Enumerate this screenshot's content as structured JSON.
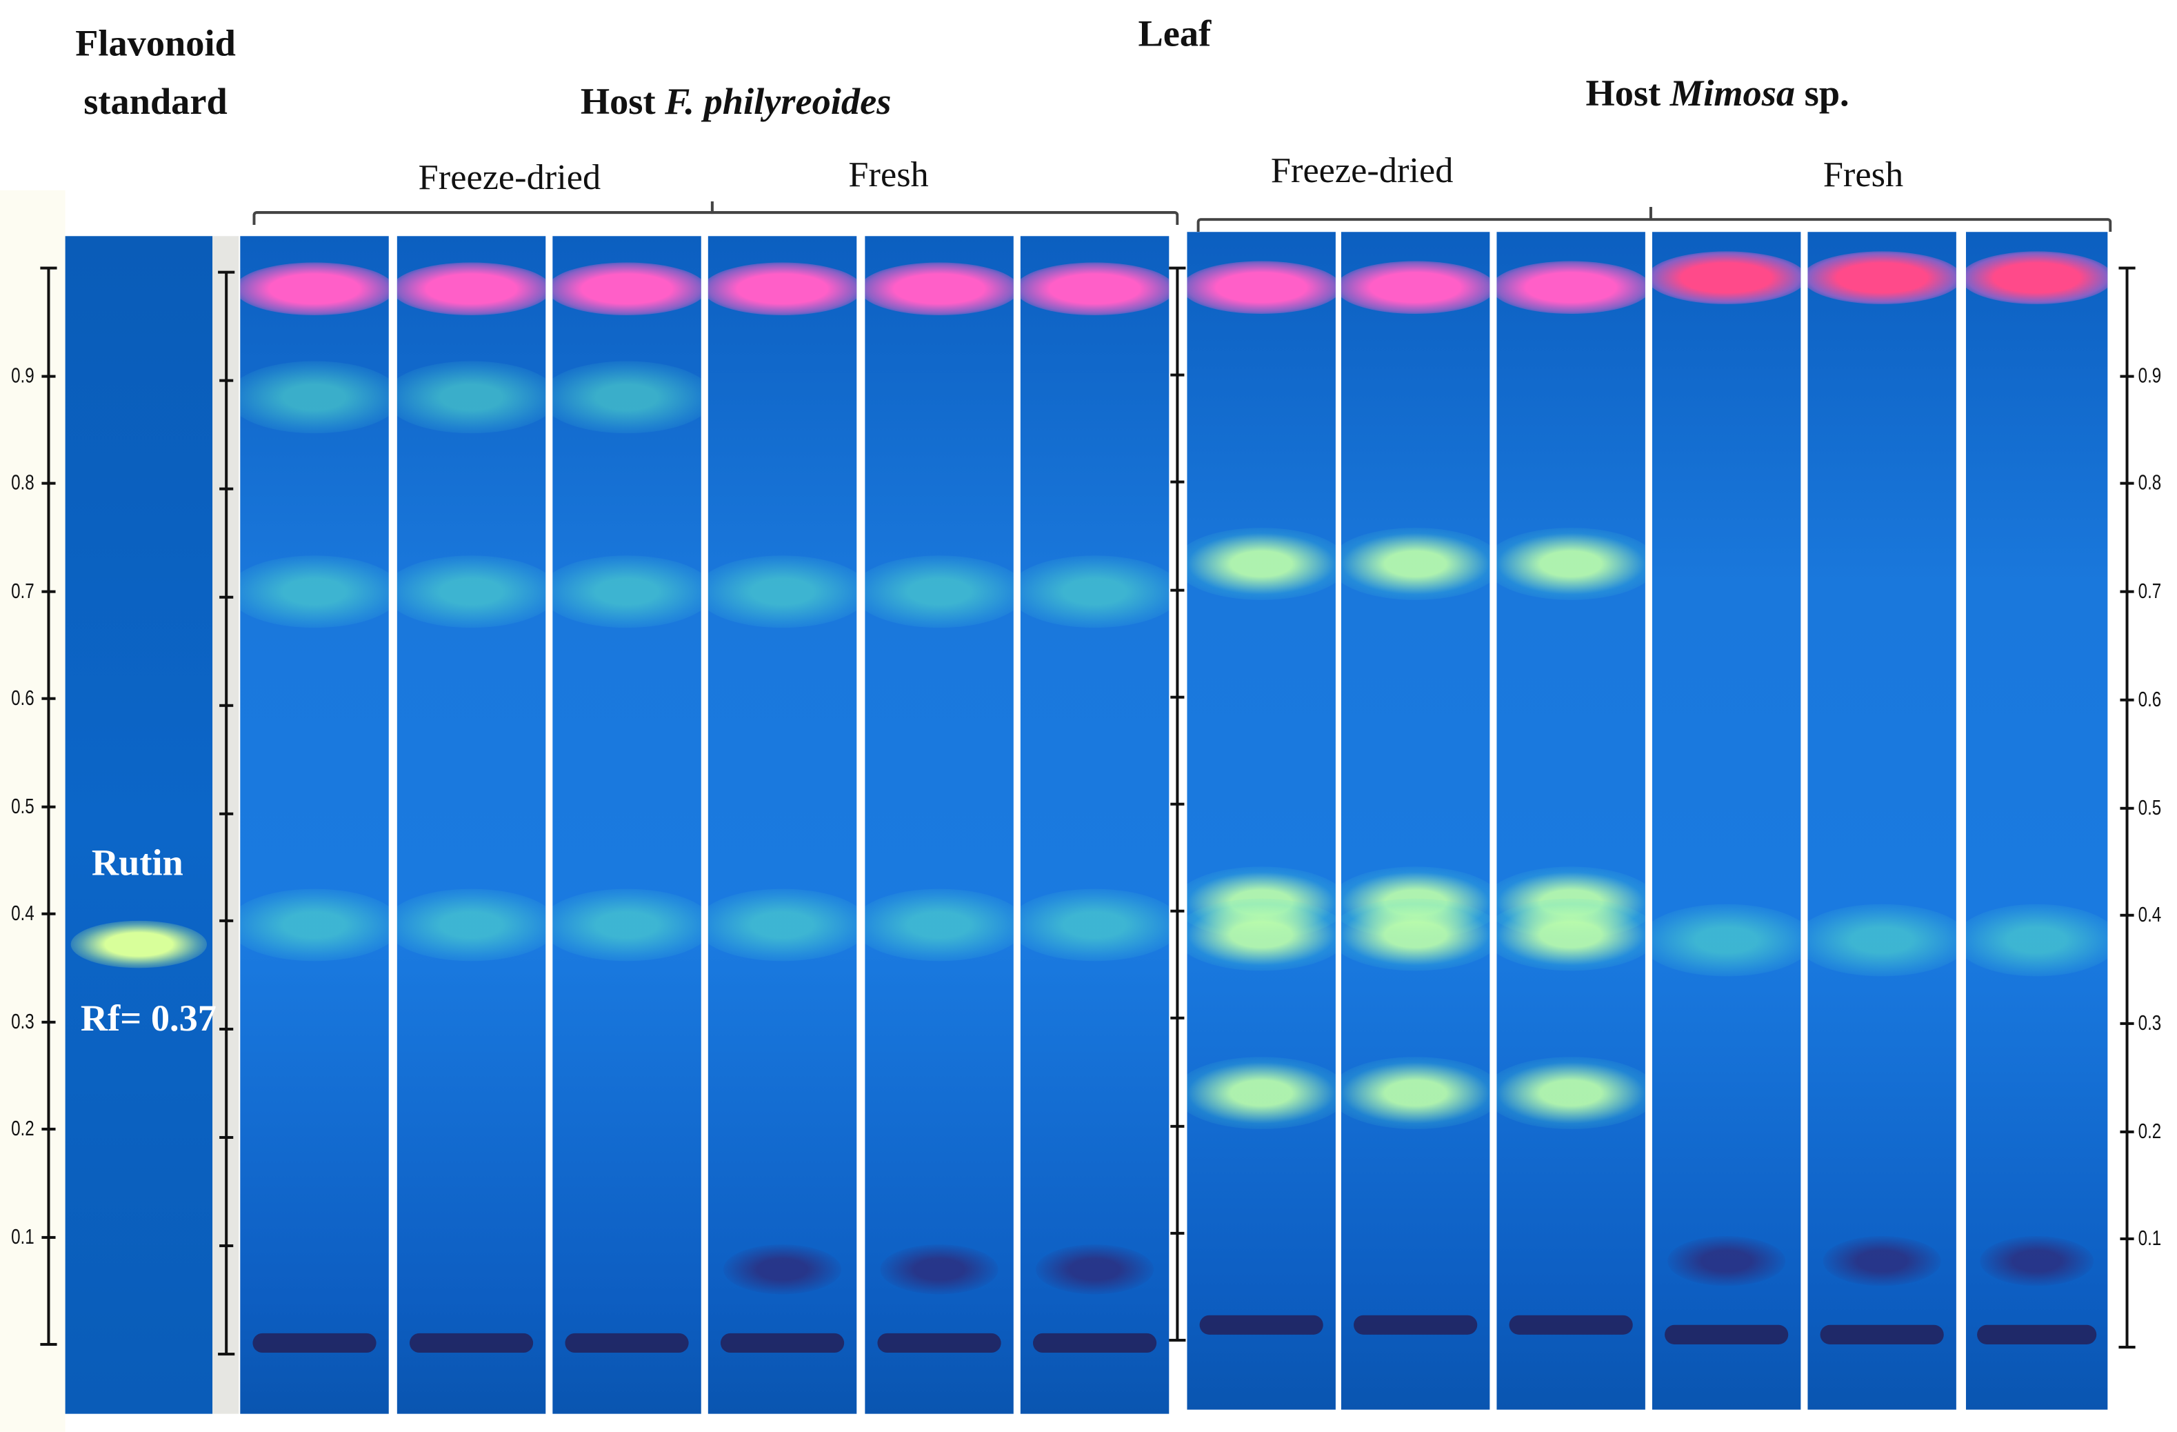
{
  "header": {
    "standard_title_line1": "Flavonoid",
    "standard_title_line2": "standard",
    "tissue": "Leaf",
    "host1_prefix": "Host ",
    "host1_species": "F. philyreoides",
    "host2_prefix": "Host ",
    "host2_species": "Mimosa",
    "host2_suffix": " sp.",
    "host1_groups": [
      "Freeze-dried",
      "Fresh"
    ],
    "host2_groups": [
      "Freeze-dried",
      "Fresh"
    ]
  },
  "standard": {
    "compound": "Rutin",
    "rf_label": "Rf= 0.37",
    "rf": 0.37
  },
  "axis": {
    "ticks": [
      "0.1",
      "0.2",
      "0.3",
      "0.4",
      "0.5",
      "0.6",
      "0.7",
      "0.8",
      "0.9"
    ],
    "range": [
      0,
      1
    ]
  },
  "colors": {
    "plate": "#0a64c8",
    "solvent_front": "#ff5fc8",
    "flavonoid_band": "#7dffd0",
    "rutin_spot": "#d8ff9a"
  },
  "lanes": {
    "host1_freeze_dried": {
      "count": 3,
      "bands_rf": [
        0.98,
        0.88,
        0.7,
        0.39
      ]
    },
    "host1_fresh": {
      "count": 3,
      "bands_rf": [
        0.98,
        0.7,
        0.39,
        0.07
      ]
    },
    "host2_freeze_dried": {
      "count": 3,
      "bands_rf": [
        0.98,
        0.72,
        0.4,
        0.37,
        0.22
      ]
    },
    "host2_fresh": {
      "count": 3,
      "bands_rf": [
        0.99,
        0.37,
        0.07
      ]
    }
  }
}
